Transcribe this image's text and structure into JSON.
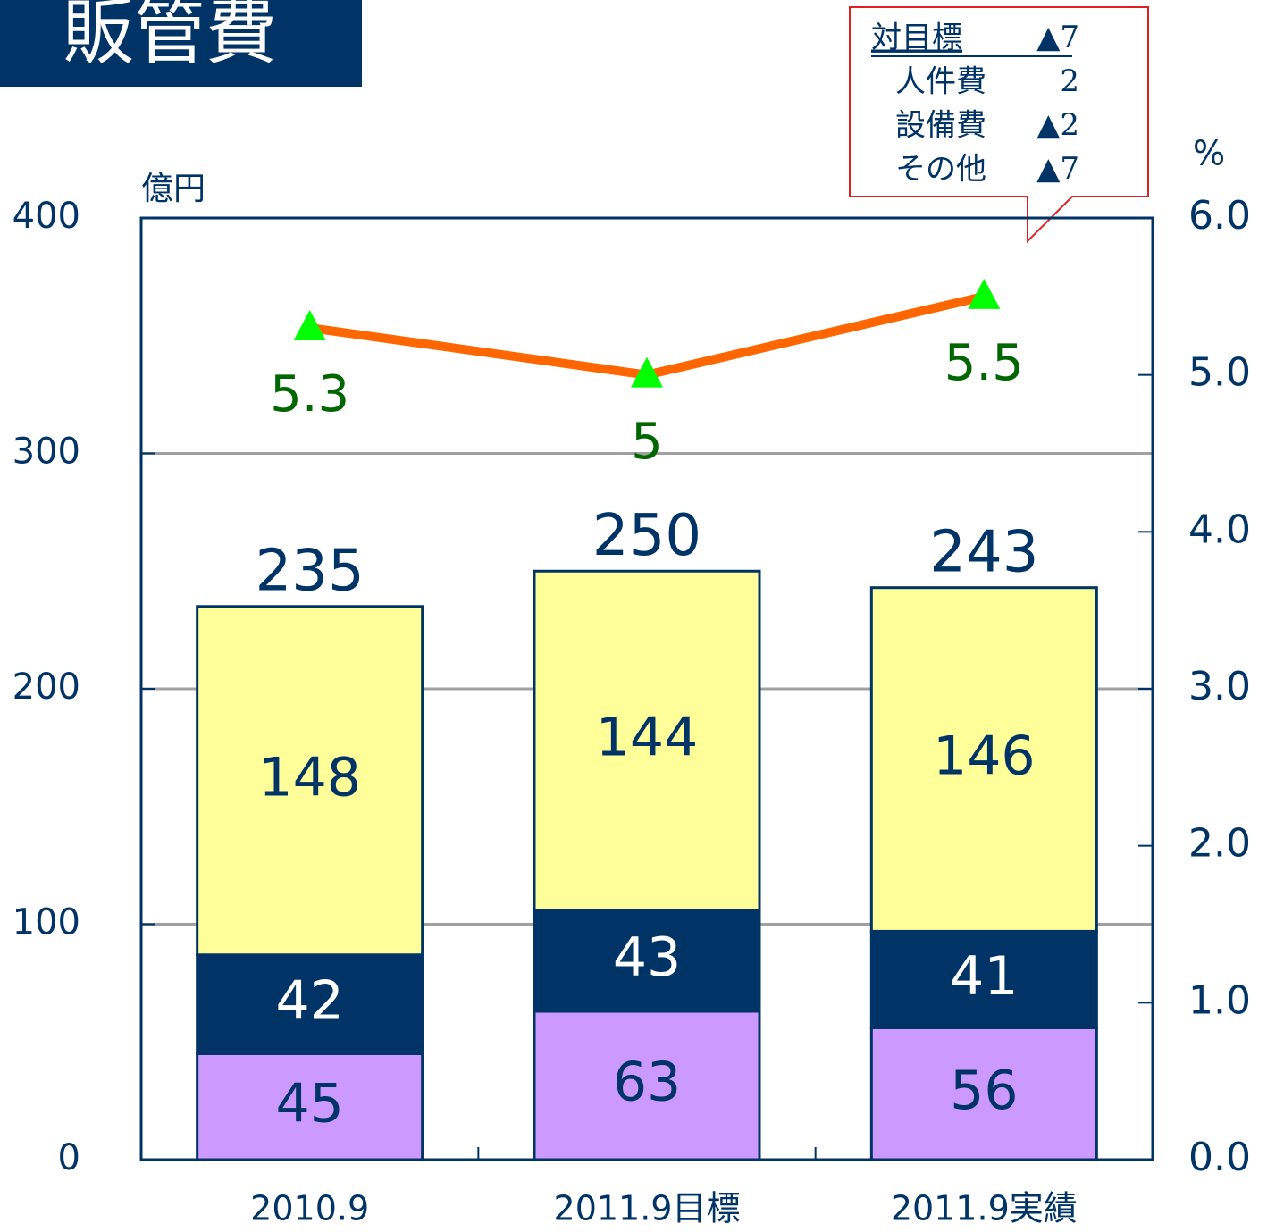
{
  "chart_data": {
    "type": "bar",
    "title": "販管費",
    "y_unit": "億円",
    "y2_unit": "%",
    "categories": [
      "2010.9",
      "2011.9目標",
      "2011.9実績"
    ],
    "series": [
      {
        "color": "#cc99ff",
        "label_color": "#003366",
        "values": [
          45,
          63,
          56
        ]
      },
      {
        "color": "#003366",
        "label_color": "#ffffff",
        "values": [
          42,
          43,
          41
        ]
      },
      {
        "color": "#ffff99",
        "label_color": "#003366",
        "values": [
          148,
          144,
          146
        ]
      },
      {
        "type": "line",
        "axis": "y2",
        "color": "#ff6600",
        "marker_color": "#00ff00",
        "label_color": "#006600",
        "values": [
          5.3,
          5.0,
          5.5
        ]
      }
    ],
    "totals": [
      235,
      250,
      243
    ],
    "ylim": [
      0,
      400
    ],
    "yticks": [
      0,
      100,
      200,
      300,
      400
    ],
    "y2lim": [
      0,
      6
    ],
    "y2ticks": [
      {
        "value": 0,
        "label": "0.0"
      },
      {
        "value": 1,
        "label": "1.0"
      },
      {
        "value": 2,
        "label": "2.0"
      },
      {
        "value": 3,
        "label": "3.0"
      },
      {
        "value": 4,
        "label": "4.0"
      },
      {
        "value": 5,
        "label": "5.0"
      },
      {
        "value": 6,
        "label": "6.0"
      }
    ],
    "grid": true,
    "annotation": [
      {
        "label": "対目標",
        "value": "▲7"
      },
      {
        "label": "人件費",
        "value": "2"
      },
      {
        "label": "設備費",
        "value": "▲2"
      },
      {
        "label": "その他",
        "value": "▲7"
      }
    ]
  }
}
